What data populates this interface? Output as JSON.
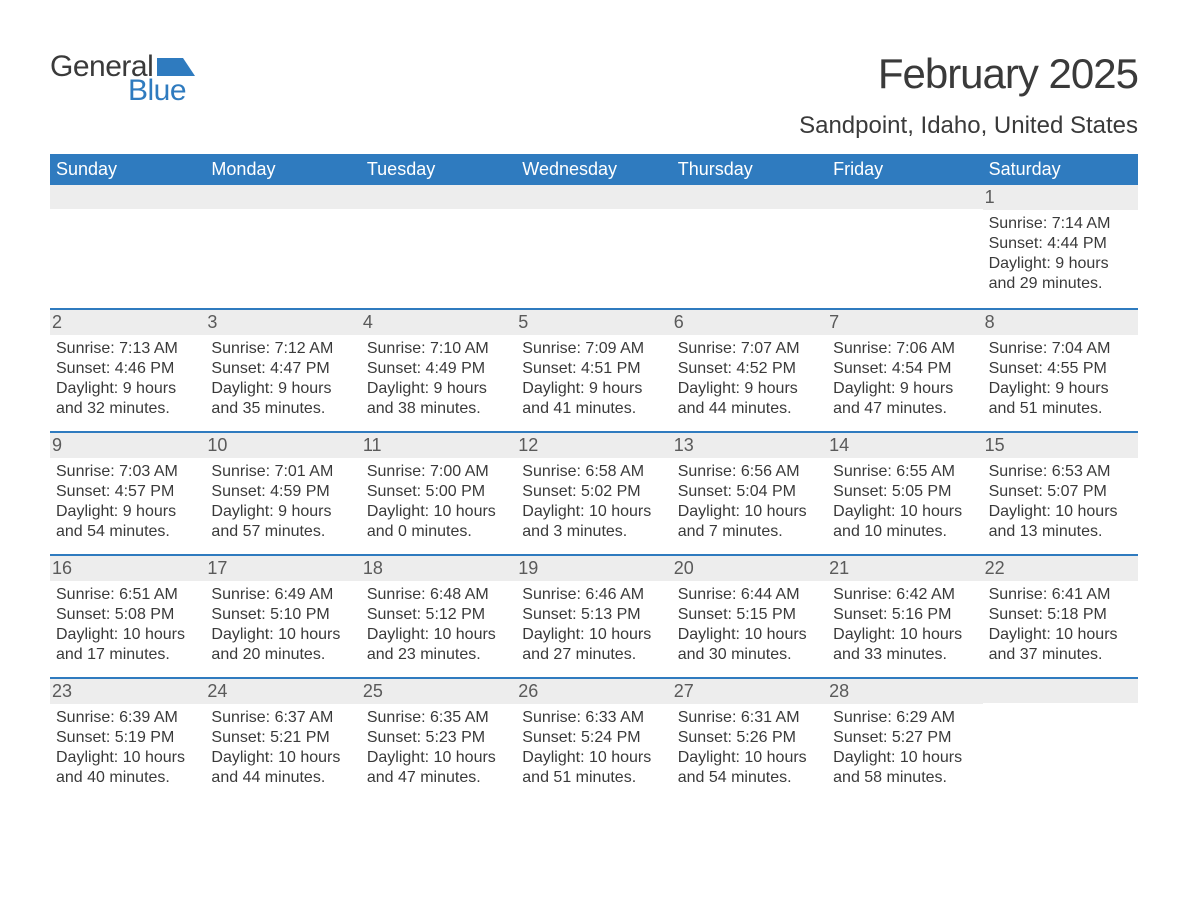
{
  "logo": {
    "word1": "General",
    "word2": "Blue",
    "flag_color": "#2f7bbf"
  },
  "title": "February 2025",
  "location": "Sandpoint, Idaho, United States",
  "colors": {
    "header_bg": "#2f7bbf",
    "header_text": "#ffffff",
    "row_divider": "#2f7bbf",
    "daynum_bg": "#ededed",
    "body_text": "#3a3a3a"
  },
  "fonts": {
    "title_size_pt": 42,
    "location_size_pt": 24,
    "weekday_size_pt": 18,
    "body_size_pt": 16
  },
  "weekdays": [
    "Sunday",
    "Monday",
    "Tuesday",
    "Wednesday",
    "Thursday",
    "Friday",
    "Saturday"
  ],
  "weeks": [
    [
      {
        "day": "",
        "sunrise": "",
        "sunset": "",
        "daylight1": "",
        "daylight2": ""
      },
      {
        "day": "",
        "sunrise": "",
        "sunset": "",
        "daylight1": "",
        "daylight2": ""
      },
      {
        "day": "",
        "sunrise": "",
        "sunset": "",
        "daylight1": "",
        "daylight2": ""
      },
      {
        "day": "",
        "sunrise": "",
        "sunset": "",
        "daylight1": "",
        "daylight2": ""
      },
      {
        "day": "",
        "sunrise": "",
        "sunset": "",
        "daylight1": "",
        "daylight2": ""
      },
      {
        "day": "",
        "sunrise": "",
        "sunset": "",
        "daylight1": "",
        "daylight2": ""
      },
      {
        "day": "1",
        "sunrise": "Sunrise: 7:14 AM",
        "sunset": "Sunset: 4:44 PM",
        "daylight1": "Daylight: 9 hours",
        "daylight2": "and 29 minutes."
      }
    ],
    [
      {
        "day": "2",
        "sunrise": "Sunrise: 7:13 AM",
        "sunset": "Sunset: 4:46 PM",
        "daylight1": "Daylight: 9 hours",
        "daylight2": "and 32 minutes."
      },
      {
        "day": "3",
        "sunrise": "Sunrise: 7:12 AM",
        "sunset": "Sunset: 4:47 PM",
        "daylight1": "Daylight: 9 hours",
        "daylight2": "and 35 minutes."
      },
      {
        "day": "4",
        "sunrise": "Sunrise: 7:10 AM",
        "sunset": "Sunset: 4:49 PM",
        "daylight1": "Daylight: 9 hours",
        "daylight2": "and 38 minutes."
      },
      {
        "day": "5",
        "sunrise": "Sunrise: 7:09 AM",
        "sunset": "Sunset: 4:51 PM",
        "daylight1": "Daylight: 9 hours",
        "daylight2": "and 41 minutes."
      },
      {
        "day": "6",
        "sunrise": "Sunrise: 7:07 AM",
        "sunset": "Sunset: 4:52 PM",
        "daylight1": "Daylight: 9 hours",
        "daylight2": "and 44 minutes."
      },
      {
        "day": "7",
        "sunrise": "Sunrise: 7:06 AM",
        "sunset": "Sunset: 4:54 PM",
        "daylight1": "Daylight: 9 hours",
        "daylight2": "and 47 minutes."
      },
      {
        "day": "8",
        "sunrise": "Sunrise: 7:04 AM",
        "sunset": "Sunset: 4:55 PM",
        "daylight1": "Daylight: 9 hours",
        "daylight2": "and 51 minutes."
      }
    ],
    [
      {
        "day": "9",
        "sunrise": "Sunrise: 7:03 AM",
        "sunset": "Sunset: 4:57 PM",
        "daylight1": "Daylight: 9 hours",
        "daylight2": "and 54 minutes."
      },
      {
        "day": "10",
        "sunrise": "Sunrise: 7:01 AM",
        "sunset": "Sunset: 4:59 PM",
        "daylight1": "Daylight: 9 hours",
        "daylight2": "and 57 minutes."
      },
      {
        "day": "11",
        "sunrise": "Sunrise: 7:00 AM",
        "sunset": "Sunset: 5:00 PM",
        "daylight1": "Daylight: 10 hours",
        "daylight2": "and 0 minutes."
      },
      {
        "day": "12",
        "sunrise": "Sunrise: 6:58 AM",
        "sunset": "Sunset: 5:02 PM",
        "daylight1": "Daylight: 10 hours",
        "daylight2": "and 3 minutes."
      },
      {
        "day": "13",
        "sunrise": "Sunrise: 6:56 AM",
        "sunset": "Sunset: 5:04 PM",
        "daylight1": "Daylight: 10 hours",
        "daylight2": "and 7 minutes."
      },
      {
        "day": "14",
        "sunrise": "Sunrise: 6:55 AM",
        "sunset": "Sunset: 5:05 PM",
        "daylight1": "Daylight: 10 hours",
        "daylight2": "and 10 minutes."
      },
      {
        "day": "15",
        "sunrise": "Sunrise: 6:53 AM",
        "sunset": "Sunset: 5:07 PM",
        "daylight1": "Daylight: 10 hours",
        "daylight2": "and 13 minutes."
      }
    ],
    [
      {
        "day": "16",
        "sunrise": "Sunrise: 6:51 AM",
        "sunset": "Sunset: 5:08 PM",
        "daylight1": "Daylight: 10 hours",
        "daylight2": "and 17 minutes."
      },
      {
        "day": "17",
        "sunrise": "Sunrise: 6:49 AM",
        "sunset": "Sunset: 5:10 PM",
        "daylight1": "Daylight: 10 hours",
        "daylight2": "and 20 minutes."
      },
      {
        "day": "18",
        "sunrise": "Sunrise: 6:48 AM",
        "sunset": "Sunset: 5:12 PM",
        "daylight1": "Daylight: 10 hours",
        "daylight2": "and 23 minutes."
      },
      {
        "day": "19",
        "sunrise": "Sunrise: 6:46 AM",
        "sunset": "Sunset: 5:13 PM",
        "daylight1": "Daylight: 10 hours",
        "daylight2": "and 27 minutes."
      },
      {
        "day": "20",
        "sunrise": "Sunrise: 6:44 AM",
        "sunset": "Sunset: 5:15 PM",
        "daylight1": "Daylight: 10 hours",
        "daylight2": "and 30 minutes."
      },
      {
        "day": "21",
        "sunrise": "Sunrise: 6:42 AM",
        "sunset": "Sunset: 5:16 PM",
        "daylight1": "Daylight: 10 hours",
        "daylight2": "and 33 minutes."
      },
      {
        "day": "22",
        "sunrise": "Sunrise: 6:41 AM",
        "sunset": "Sunset: 5:18 PM",
        "daylight1": "Daylight: 10 hours",
        "daylight2": "and 37 minutes."
      }
    ],
    [
      {
        "day": "23",
        "sunrise": "Sunrise: 6:39 AM",
        "sunset": "Sunset: 5:19 PM",
        "daylight1": "Daylight: 10 hours",
        "daylight2": "and 40 minutes."
      },
      {
        "day": "24",
        "sunrise": "Sunrise: 6:37 AM",
        "sunset": "Sunset: 5:21 PM",
        "daylight1": "Daylight: 10 hours",
        "daylight2": "and 44 minutes."
      },
      {
        "day": "25",
        "sunrise": "Sunrise: 6:35 AM",
        "sunset": "Sunset: 5:23 PM",
        "daylight1": "Daylight: 10 hours",
        "daylight2": "and 47 minutes."
      },
      {
        "day": "26",
        "sunrise": "Sunrise: 6:33 AM",
        "sunset": "Sunset: 5:24 PM",
        "daylight1": "Daylight: 10 hours",
        "daylight2": "and 51 minutes."
      },
      {
        "day": "27",
        "sunrise": "Sunrise: 6:31 AM",
        "sunset": "Sunset: 5:26 PM",
        "daylight1": "Daylight: 10 hours",
        "daylight2": "and 54 minutes."
      },
      {
        "day": "28",
        "sunrise": "Sunrise: 6:29 AM",
        "sunset": "Sunset: 5:27 PM",
        "daylight1": "Daylight: 10 hours",
        "daylight2": "and 58 minutes."
      },
      {
        "day": "",
        "sunrise": "",
        "sunset": "",
        "daylight1": "",
        "daylight2": ""
      }
    ]
  ]
}
